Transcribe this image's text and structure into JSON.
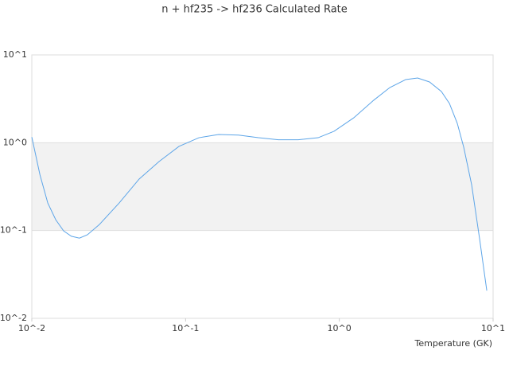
{
  "chart_data": {
    "type": "line",
    "title": "n + hf235 -> hf236 Calculated Rate",
    "x_label": "Temperature (GK)",
    "x": [
      0.01,
      0.0113,
      0.0127,
      0.0143,
      0.0161,
      0.0181,
      0.0204,
      0.023,
      0.0275,
      0.037,
      0.0499,
      0.0672,
      0.0906,
      0.122,
      0.164,
      0.221,
      0.298,
      0.401,
      0.54,
      0.728,
      0.924,
      1.24,
      1.67,
      2.13,
      2.7,
      3.23,
      3.86,
      4.61,
      5.2,
      5.85,
      6.44,
      7.25,
      8.17,
      9.1
    ],
    "series": [
      {
        "color": "#5da5e8",
        "values": [
          1.16,
          0.43,
          0.206,
          0.133,
          0.099,
          0.086,
          0.082,
          0.0895,
          0.117,
          0.206,
          0.386,
          0.61,
          0.908,
          1.14,
          1.24,
          1.22,
          1.14,
          1.08,
          1.08,
          1.14,
          1.35,
          1.92,
          3.04,
          4.25,
          5.24,
          5.46,
          4.92,
          3.83,
          2.8,
          1.66,
          0.89,
          0.333,
          0.0805,
          0.0207
        ]
      }
    ],
    "xscale": "log",
    "yscale": "log",
    "xlim": [
      0.01,
      10
    ],
    "ylim": [
      0.01,
      10
    ],
    "xticks": [
      {
        "value": 0.01,
        "label": "10^-2"
      },
      {
        "value": 0.1,
        "label": "10^-1"
      },
      {
        "value": 1,
        "label": "10^0"
      },
      {
        "value": 10,
        "label": "10^1"
      }
    ],
    "yticks": [
      {
        "value": 0.01,
        "label": "10^-2"
      },
      {
        "value": 0.1,
        "label": "10^-1"
      },
      {
        "value": 1,
        "label": "10^0"
      },
      {
        "value": 10,
        "label": "10^1"
      }
    ],
    "grid": true
  }
}
